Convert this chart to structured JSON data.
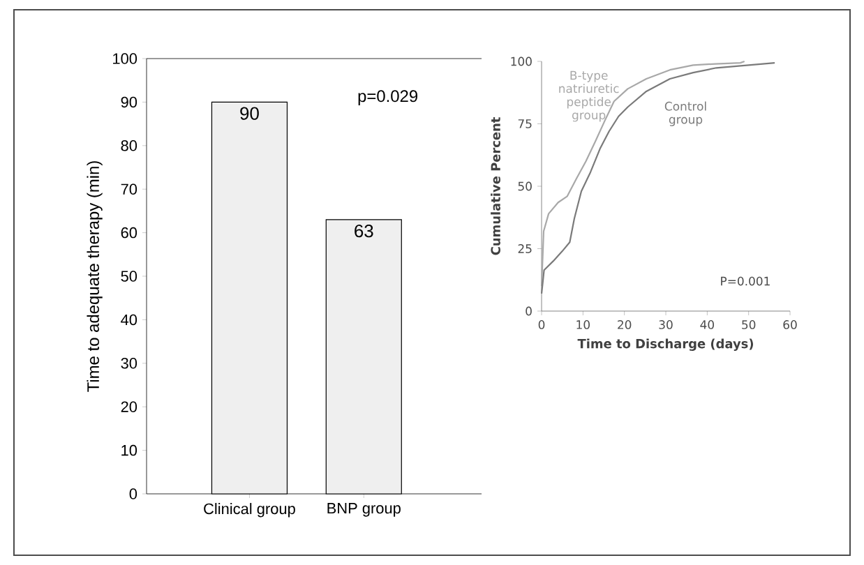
{
  "chart_data": [
    {
      "type": "bar",
      "ylabel": "Time to adequate therapy (min)",
      "categories": [
        "Clinical group",
        "BNP group"
      ],
      "values": [
        90,
        63
      ],
      "color": "#efefef",
      "ylim": [
        0,
        100
      ],
      "yticks": [
        0,
        10,
        20,
        30,
        40,
        50,
        60,
        70,
        80,
        90,
        100
      ],
      "data_labels": true,
      "annotations": [
        "p=0.029"
      ]
    },
    {
      "type": "line",
      "xlabel": "Time to Discharge (days)",
      "ylabel": "Cumulative Percent",
      "xlim": [
        0,
        60
      ],
      "ylim": [
        0,
        100
      ],
      "xticks": [
        0,
        10,
        20,
        30,
        40,
        50,
        60
      ],
      "yticks": [
        0,
        25,
        50,
        75,
        100
      ],
      "annotations": [
        "P=0.001"
      ],
      "series": [
        {
          "name": "B-type natriuretic peptide group",
          "color": "#a8a8a8",
          "x": [
            0,
            0.5,
            1.7,
            4,
            6.2,
            8.4,
            10.7,
            13,
            15.2,
            17.5,
            20.8,
            25.3,
            31,
            36.6,
            42,
            48,
            49
          ],
          "values": [
            10,
            32,
            39,
            43.5,
            46,
            53,
            60,
            68,
            76,
            84,
            89,
            93,
            96.6,
            98.5,
            99,
            99.4,
            100
          ]
        },
        {
          "name": "Control group",
          "color": "#7a7a7a",
          "x": [
            0,
            0.6,
            2.8,
            5,
            6.8,
            7.9,
            9.6,
            11.8,
            14.1,
            16.3,
            18.6,
            20.8,
            25.3,
            31,
            36.6,
            42.2,
            50,
            56.3
          ],
          "values": [
            7,
            16.4,
            20,
            24,
            27.6,
            37,
            48,
            55.6,
            65,
            72,
            78,
            81.7,
            88,
            93,
            95.5,
            97.4,
            98.5,
            99.4
          ]
        }
      ]
    }
  ]
}
